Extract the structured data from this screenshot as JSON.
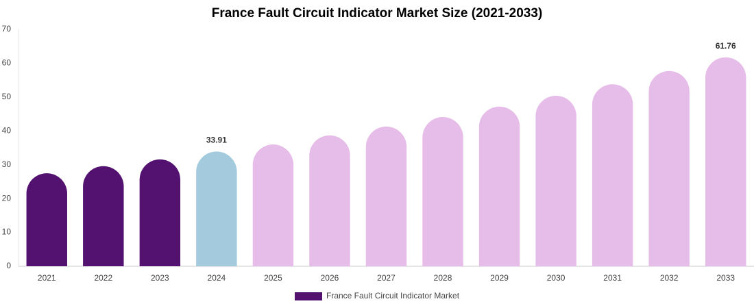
{
  "chart_data": {
    "type": "bar",
    "title": "France Fault Circuit Indicator Market Size (2021-2033)",
    "categories": [
      "2021",
      "2022",
      "2023",
      "2024",
      "2025",
      "2026",
      "2027",
      "2028",
      "2029",
      "2030",
      "2031",
      "2032",
      "2033"
    ],
    "series": [
      {
        "name": "France Fault Circuit Indicator Market",
        "color": "#531270",
        "values": [
          27.5,
          29.6,
          31.6,
          33.91,
          36.0,
          38.7,
          41.3,
          44.1,
          47.2,
          50.4,
          53.8,
          57.7,
          61.76
        ],
        "value_labels": [
          null,
          null,
          null,
          "33.91",
          null,
          null,
          null,
          null,
          null,
          null,
          null,
          null,
          "61.76"
        ],
        "colors": [
          "#531270",
          "#531270",
          "#531270",
          "#a4cade",
          "#e6bde9",
          "#e6bde9",
          "#e6bde9",
          "#e6bde9",
          "#e6bde9",
          "#e6bde9",
          "#e6bde9",
          "#e6bde9",
          "#e6bde9"
        ]
      }
    ],
    "ylim": [
      0,
      70
    ],
    "yticks": [
      0,
      10,
      20,
      30,
      40,
      50,
      60,
      70
    ],
    "grid": false,
    "legend": "bottom"
  }
}
